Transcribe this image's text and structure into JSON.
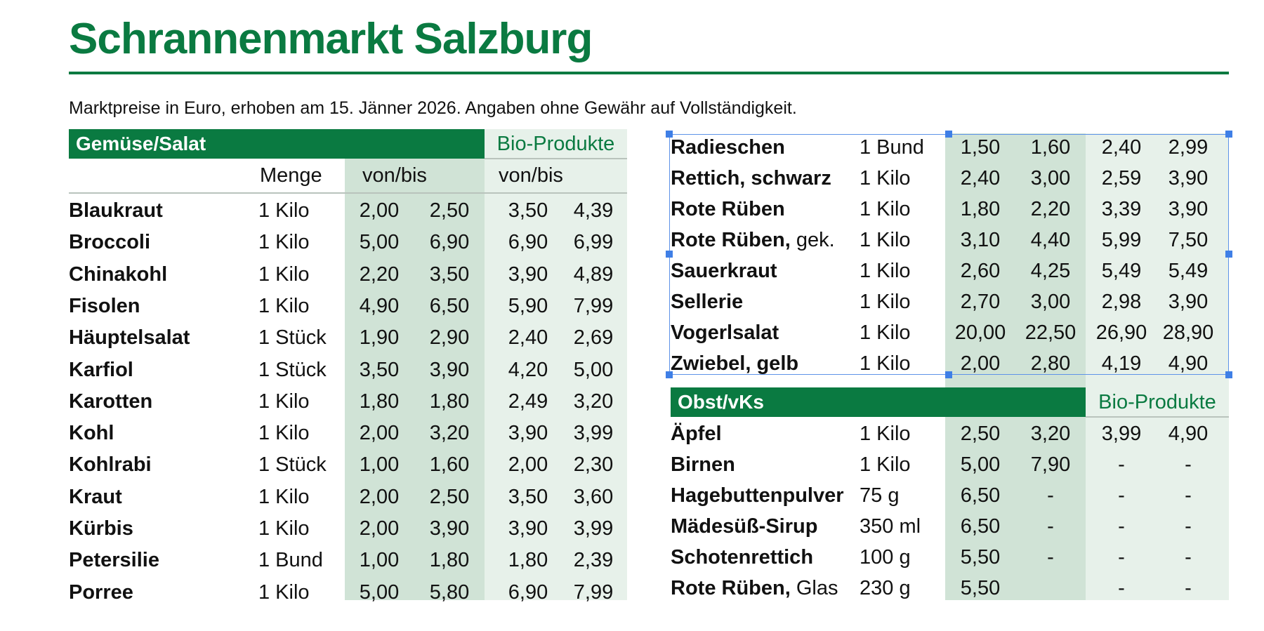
{
  "title": "Schrannenmarkt Salzburg",
  "subtitle": "Marktpreise in Euro, erhoben am 15. Jänner 2026. Angaben ohne Gewähr auf Vollständigkeit.",
  "colors": {
    "accent": "#0a7a41",
    "shade_dark": "#d0e3d6",
    "shade_light": "#e7f1ea",
    "selection": "#3f7fe6"
  },
  "left": {
    "section_label": "Gemüse/Salat",
    "bio_label": "Bio-Produkte",
    "col_menge": "Menge",
    "col_vonbis": "von/bis",
    "col_bio_vonbis": "von/bis",
    "rows": [
      {
        "name": "Blaukraut",
        "suffix": "",
        "qty": "1 Kilo",
        "von": "2,00",
        "bis": "2,50",
        "bio_von": "3,50",
        "bio_bis": "4,39"
      },
      {
        "name": "Broccoli",
        "suffix": "",
        "qty": "1 Kilo",
        "von": "5,00",
        "bis": "6,90",
        "bio_von": "6,90",
        "bio_bis": "6,99"
      },
      {
        "name": "Chinakohl",
        "suffix": "",
        "qty": "1 Kilo",
        "von": "2,20",
        "bis": "3,50",
        "bio_von": "3,90",
        "bio_bis": "4,89"
      },
      {
        "name": "Fisolen",
        "suffix": "",
        "qty": "1 Kilo",
        "von": "4,90",
        "bis": "6,50",
        "bio_von": "5,90",
        "bio_bis": "7,99"
      },
      {
        "name": "Häuptelsalat",
        "suffix": "",
        "qty": "1 Stück",
        "von": "1,90",
        "bis": "2,90",
        "bio_von": "2,40",
        "bio_bis": "2,69"
      },
      {
        "name": "Karfiol",
        "suffix": "",
        "qty": "1 Stück",
        "von": "3,50",
        "bis": "3,90",
        "bio_von": "4,20",
        "bio_bis": "5,00"
      },
      {
        "name": "Karotten",
        "suffix": "",
        "qty": "1 Kilo",
        "von": "1,80",
        "bis": "1,80",
        "bio_von": "2,49",
        "bio_bis": "3,20"
      },
      {
        "name": "Kohl",
        "suffix": "",
        "qty": "1 Kilo",
        "von": "2,00",
        "bis": "3,20",
        "bio_von": "3,90",
        "bio_bis": "3,99"
      },
      {
        "name": "Kohlrabi",
        "suffix": "",
        "qty": "1 Stück",
        "von": "1,00",
        "bis": "1,60",
        "bio_von": "2,00",
        "bio_bis": "2,30"
      },
      {
        "name": "Kraut",
        "suffix": "",
        "qty": "1 Kilo",
        "von": "2,00",
        "bis": "2,50",
        "bio_von": "3,50",
        "bio_bis": "3,60"
      },
      {
        "name": "Kürbis",
        "suffix": "",
        "qty": "1 Kilo",
        "von": "2,00",
        "bis": "3,90",
        "bio_von": "3,90",
        "bio_bis": "3,99"
      },
      {
        "name": "Petersilie",
        "suffix": "",
        "qty": "1 Bund",
        "von": "1,00",
        "bis": "1,80",
        "bio_von": "1,80",
        "bio_bis": "2,39"
      },
      {
        "name": "Porree",
        "suffix": "",
        "qty": "1 Kilo",
        "von": "5,00",
        "bis": "5,80",
        "bio_von": "6,90",
        "bio_bis": "7,99"
      }
    ]
  },
  "right_top": {
    "rows": [
      {
        "name": "Radieschen",
        "suffix": "",
        "qty": "1 Bund",
        "von": "1,50",
        "bis": "1,60",
        "bio_von": "2,40",
        "bio_bis": "2,99"
      },
      {
        "name": "Rettich, schwarz",
        "suffix": "",
        "qty": "1 Kilo",
        "von": "2,40",
        "bis": "3,00",
        "bio_von": "2,59",
        "bio_bis": "3,90"
      },
      {
        "name": "Rote Rüben",
        "suffix": "",
        "qty": "1 Kilo",
        "von": "1,80",
        "bis": "2,20",
        "bio_von": "3,39",
        "bio_bis": "3,90"
      },
      {
        "name": "Rote Rüben,",
        "suffix": " gek.",
        "qty": "1 Kilo",
        "von": "3,10",
        "bis": "4,40",
        "bio_von": "5,99",
        "bio_bis": "7,50"
      },
      {
        "name": "Sauerkraut",
        "suffix": "",
        "qty": "1 Kilo",
        "von": "2,60",
        "bis": "4,25",
        "bio_von": "5,49",
        "bio_bis": "5,49"
      },
      {
        "name": "Sellerie",
        "suffix": "",
        "qty": "1 Kilo",
        "von": "2,70",
        "bis": "3,00",
        "bio_von": "2,98",
        "bio_bis": "3,90"
      },
      {
        "name": "Vogerlsalat",
        "suffix": "",
        "qty": "1 Kilo",
        "von": "20,00",
        "bis": "22,50",
        "bio_von": "26,90",
        "bio_bis": "28,90"
      },
      {
        "name": "Zwiebel, gelb",
        "suffix": "",
        "qty": "1 Kilo",
        "von": "2,00",
        "bis": "2,80",
        "bio_von": "4,19",
        "bio_bis": "4,90"
      }
    ]
  },
  "right_bottom": {
    "section_label": "Obst/vKs",
    "bio_label": "Bio-Produkte",
    "rows": [
      {
        "name": "Äpfel",
        "suffix": "",
        "qty": "1 Kilo",
        "von": "2,50",
        "bis": "3,20",
        "bio_von": "3,99",
        "bio_bis": "4,90"
      },
      {
        "name": "Birnen",
        "suffix": "",
        "qty": "1 Kilo",
        "von": "5,00",
        "bis": "7,90",
        "bio_von": "-",
        "bio_bis": "-"
      },
      {
        "name": "Hagebuttenpulver",
        "suffix": "",
        "qty": "75 g",
        "von": "6,50",
        "bis": "-",
        "bio_von": "-",
        "bio_bis": "-"
      },
      {
        "name": "Mädesüß-Sirup",
        "suffix": "",
        "qty": " 350 ml",
        "von": "6,50",
        "bis": "-",
        "bio_von": "-",
        "bio_bis": "-"
      },
      {
        "name": "Schotenrettich",
        "suffix": "",
        "qty": "100 g",
        "von": "5,50",
        "bis": "-",
        "bio_von": "-",
        "bio_bis": "-"
      },
      {
        "name": "Rote Rüben,",
        "suffix": " Glas",
        "qty": "230 g",
        "von": "5,50",
        "bis": "",
        "bio_von": "-",
        "bio_bis": "-"
      }
    ]
  }
}
